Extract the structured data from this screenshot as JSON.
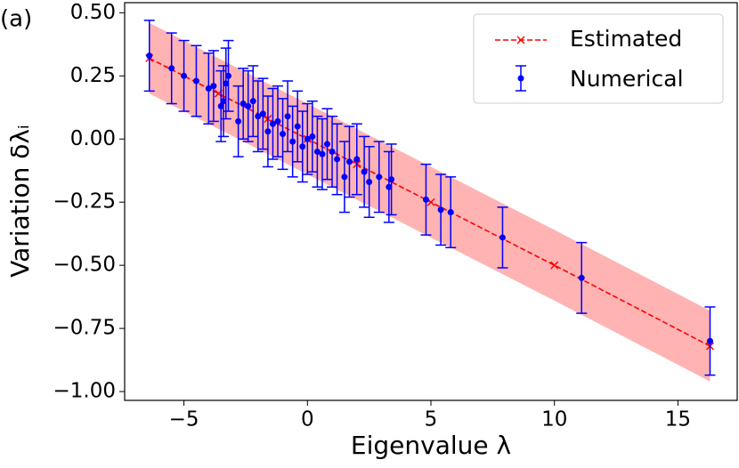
{
  "chart_data": {
    "type": "errorbar",
    "annotation": "(a)",
    "x_label": "Eigenvalue λ",
    "y_label": "Variation δλᵢ",
    "xlim": [
      -7.4,
      17.4
    ],
    "ylim": [
      -1.035,
      0.54
    ],
    "xticks": [
      {
        "value": -5,
        "label": "−5"
      },
      0,
      5,
      10,
      15
    ],
    "yticks": [
      {
        "value": 0.5,
        "label": "0.50"
      },
      0.25,
      {
        "value": 0,
        "label": "0.00"
      },
      {
        "value": -0.25,
        "label": "−0.25"
      },
      {
        "value": -0.5,
        "label": "−0.50"
      },
      {
        "value": -0.75,
        "label": "−0.75"
      },
      {
        "value": -1,
        "label": "−1.00"
      }
    ],
    "legend": "upper right",
    "series": [
      {
        "name": "Estimated",
        "color": "#ff0000",
        "band_color": "#ffb3b3",
        "x": [
          -6.4,
          -3.6,
          -1.6,
          0,
          2.0,
          5.0,
          10,
          16.3
        ],
        "values": [
          0.32,
          0.18,
          0.08,
          0.0,
          -0.1,
          -0.25,
          -0.5,
          -0.82
        ],
        "lower": [
          0.18,
          0.04,
          -0.06,
          -0.14,
          -0.24,
          -0.39,
          -0.64,
          -0.96
        ],
        "upper": [
          0.46,
          0.32,
          0.22,
          0.14,
          0.04,
          -0.11,
          -0.36,
          -0.68
        ]
      },
      {
        "name": "Numerical",
        "color": "#0000ff",
        "x": [
          -6.4,
          -5.5,
          -5.0,
          -4.5,
          -4.0,
          -3.8,
          -3.5,
          -3.4,
          -3.3,
          -3.2,
          -2.8,
          -2.6,
          -2.4,
          -2.2,
          -2.0,
          -1.8,
          -1.6,
          -1.4,
          -1.2,
          -1.0,
          -0.8,
          -0.6,
          -0.4,
          -0.2,
          0.0,
          0.2,
          0.4,
          0.6,
          0.8,
          1.0,
          1.2,
          1.5,
          1.7,
          2.0,
          2.3,
          2.5,
          2.9,
          3.3,
          3.4,
          4.8,
          5.4,
          5.8,
          7.9,
          11.1,
          16.3
        ],
        "values": [
          0.33,
          0.28,
          0.25,
          0.23,
          0.2,
          0.21,
          0.13,
          0.15,
          0.22,
          0.25,
          0.07,
          0.14,
          0.13,
          0.15,
          0.09,
          0.1,
          0.03,
          0.06,
          0.07,
          0.02,
          0.09,
          -0.01,
          0.05,
          -0.03,
          0.0,
          0.01,
          -0.05,
          -0.06,
          -0.02,
          -0.05,
          -0.08,
          -0.15,
          -0.09,
          -0.08,
          -0.13,
          -0.17,
          -0.15,
          -0.19,
          -0.16,
          -0.24,
          -0.28,
          -0.29,
          -0.39,
          -0.55,
          -0.8
        ],
        "errors": [
          0.14,
          0.14,
          0.14,
          0.14,
          0.14,
          0.14,
          0.14,
          0.14,
          0.14,
          0.14,
          0.14,
          0.14,
          0.14,
          0.14,
          0.14,
          0.14,
          0.14,
          0.14,
          0.14,
          0.14,
          0.14,
          0.14,
          0.14,
          0.14,
          0.14,
          0.14,
          0.14,
          0.14,
          0.14,
          0.14,
          0.14,
          0.14,
          0.14,
          0.14,
          0.14,
          0.14,
          0.14,
          0.14,
          0.14,
          0.14,
          0.14,
          0.14,
          0.12,
          0.14,
          0.135
        ]
      }
    ]
  }
}
